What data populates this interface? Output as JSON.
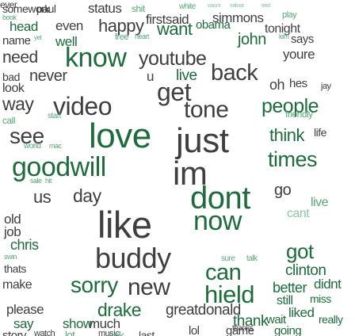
{
  "colors": {
    "background": "#ffffff",
    "palette": [
      "#3f3f3f",
      "#1e6b3c",
      "#2d8a52",
      "#5aa677",
      "#8cc7a1",
      "#bcbcbc"
    ]
  },
  "words": [
    {
      "text": "somework",
      "c": 0
    },
    {
      "text": "paul",
      "c": 0
    },
    {
      "text": "status",
      "c": 0
    },
    {
      "text": "shit",
      "c": 3
    },
    {
      "text": "white",
      "c": 3
    },
    {
      "text": "wasnt",
      "c": 4
    },
    {
      "text": "eatwar",
      "c": 4
    },
    {
      "text": "tried",
      "c": 4
    },
    {
      "text": "book",
      "c": 3
    },
    {
      "text": "firstsaid",
      "c": 0
    },
    {
      "text": "simmons",
      "c": 0
    },
    {
      "text": "play",
      "c": 3
    },
    {
      "text": "head",
      "c": 1
    },
    {
      "text": "even",
      "c": 0
    },
    {
      "text": "happy",
      "c": 0
    },
    {
      "text": "want",
      "c": 1
    },
    {
      "text": "obama",
      "c": 1
    },
    {
      "text": "tonight",
      "c": 0
    },
    {
      "text": "name",
      "c": 0
    },
    {
      "text": "yet",
      "c": 3
    },
    {
      "text": "well",
      "c": 1
    },
    {
      "text": "free",
      "c": 3
    },
    {
      "text": "heart",
      "c": 3
    },
    {
      "text": "john",
      "c": 1
    },
    {
      "text": "kim",
      "c": 3
    },
    {
      "text": "says",
      "c": 0
    },
    {
      "text": "need",
      "c": 0
    },
    {
      "text": "know",
      "c": 1
    },
    {
      "text": "youtube",
      "c": 0
    },
    {
      "text": "youre",
      "c": 0
    },
    {
      "text": "bad",
      "c": 0
    },
    {
      "text": "never",
      "c": 0
    },
    {
      "text": "u",
      "c": 0
    },
    {
      "text": "live",
      "c": 1
    },
    {
      "text": "back",
      "c": 0
    },
    {
      "text": "look",
      "c": 0
    },
    {
      "text": "get",
      "c": 0
    },
    {
      "text": "oh",
      "c": 0
    },
    {
      "text": "hes",
      "c": 0
    },
    {
      "text": "jay",
      "c": 0
    },
    {
      "text": "way",
      "c": 0
    },
    {
      "text": "video",
      "c": 0
    },
    {
      "text": "tone",
      "c": 0
    },
    {
      "text": "people",
      "c": 1
    },
    {
      "text": "call",
      "c": 3
    },
    {
      "text": "start",
      "c": 3
    },
    {
      "text": "friendly",
      "c": 3
    },
    {
      "text": "see",
      "c": 0
    },
    {
      "text": "love",
      "c": 1
    },
    {
      "text": "just",
      "c": 0
    },
    {
      "text": "think",
      "c": 1
    },
    {
      "text": "life",
      "c": 0
    },
    {
      "text": "world",
      "c": 3
    },
    {
      "text": "mac",
      "c": 3
    },
    {
      "text": "goodwill",
      "c": 1
    },
    {
      "text": "im",
      "c": 0
    },
    {
      "text": "times",
      "c": 1
    },
    {
      "text": "sale",
      "c": 3
    },
    {
      "text": "hit",
      "c": 3
    },
    {
      "text": "us",
      "c": 0
    },
    {
      "text": "day",
      "c": 0
    },
    {
      "text": "dont",
      "c": 1
    },
    {
      "text": "go",
      "c": 0
    },
    {
      "text": "live",
      "c": 3
    },
    {
      "text": "old",
      "c": 0
    },
    {
      "text": "job",
      "c": 0
    },
    {
      "text": "like",
      "c": 0
    },
    {
      "text": "now",
      "c": 1
    },
    {
      "text": "cant",
      "c": 4
    },
    {
      "text": "chris",
      "c": 1
    },
    {
      "text": "buddy",
      "c": 0
    },
    {
      "text": "got",
      "c": 1
    },
    {
      "text": "sure",
      "c": 3
    },
    {
      "text": "talk",
      "c": 3
    },
    {
      "text": "can",
      "c": 1
    },
    {
      "text": "clinton",
      "c": 1
    },
    {
      "text": "swin",
      "c": 3
    },
    {
      "text": "thats",
      "c": 0
    },
    {
      "text": "make",
      "c": 0
    },
    {
      "text": "sorry",
      "c": 1
    },
    {
      "text": "new",
      "c": 0
    },
    {
      "text": "hield",
      "c": 1
    },
    {
      "text": "better",
      "c": 1
    },
    {
      "text": "didnt",
      "c": 1
    },
    {
      "text": "still",
      "c": 1
    },
    {
      "text": "miss",
      "c": 1
    },
    {
      "text": "please",
      "c": 0
    },
    {
      "text": "drake",
      "c": 1
    },
    {
      "text": "greatdonald",
      "c": 0
    },
    {
      "text": "liked",
      "c": 1
    },
    {
      "text": "thank",
      "c": 1
    },
    {
      "text": "wait",
      "c": 1
    },
    {
      "text": "really",
      "c": 1
    },
    {
      "text": "say",
      "c": 1
    },
    {
      "text": "show",
      "c": 1
    },
    {
      "text": "much",
      "c": 0
    },
    {
      "text": "thanks",
      "c": 0
    },
    {
      "text": "lol",
      "c": 0
    },
    {
      "text": "game",
      "c": 0
    },
    {
      "text": "going",
      "c": 1
    },
    {
      "text": "story",
      "c": 0
    },
    {
      "text": "watch",
      "c": 0
    },
    {
      "text": "lot",
      "c": 3
    },
    {
      "text": "music",
      "c": 0
    },
    {
      "text": "ask",
      "c": 3
    },
    {
      "text": "last",
      "c": 0
    },
    {
      "text": "ever",
      "c": 0
    }
  ]
}
